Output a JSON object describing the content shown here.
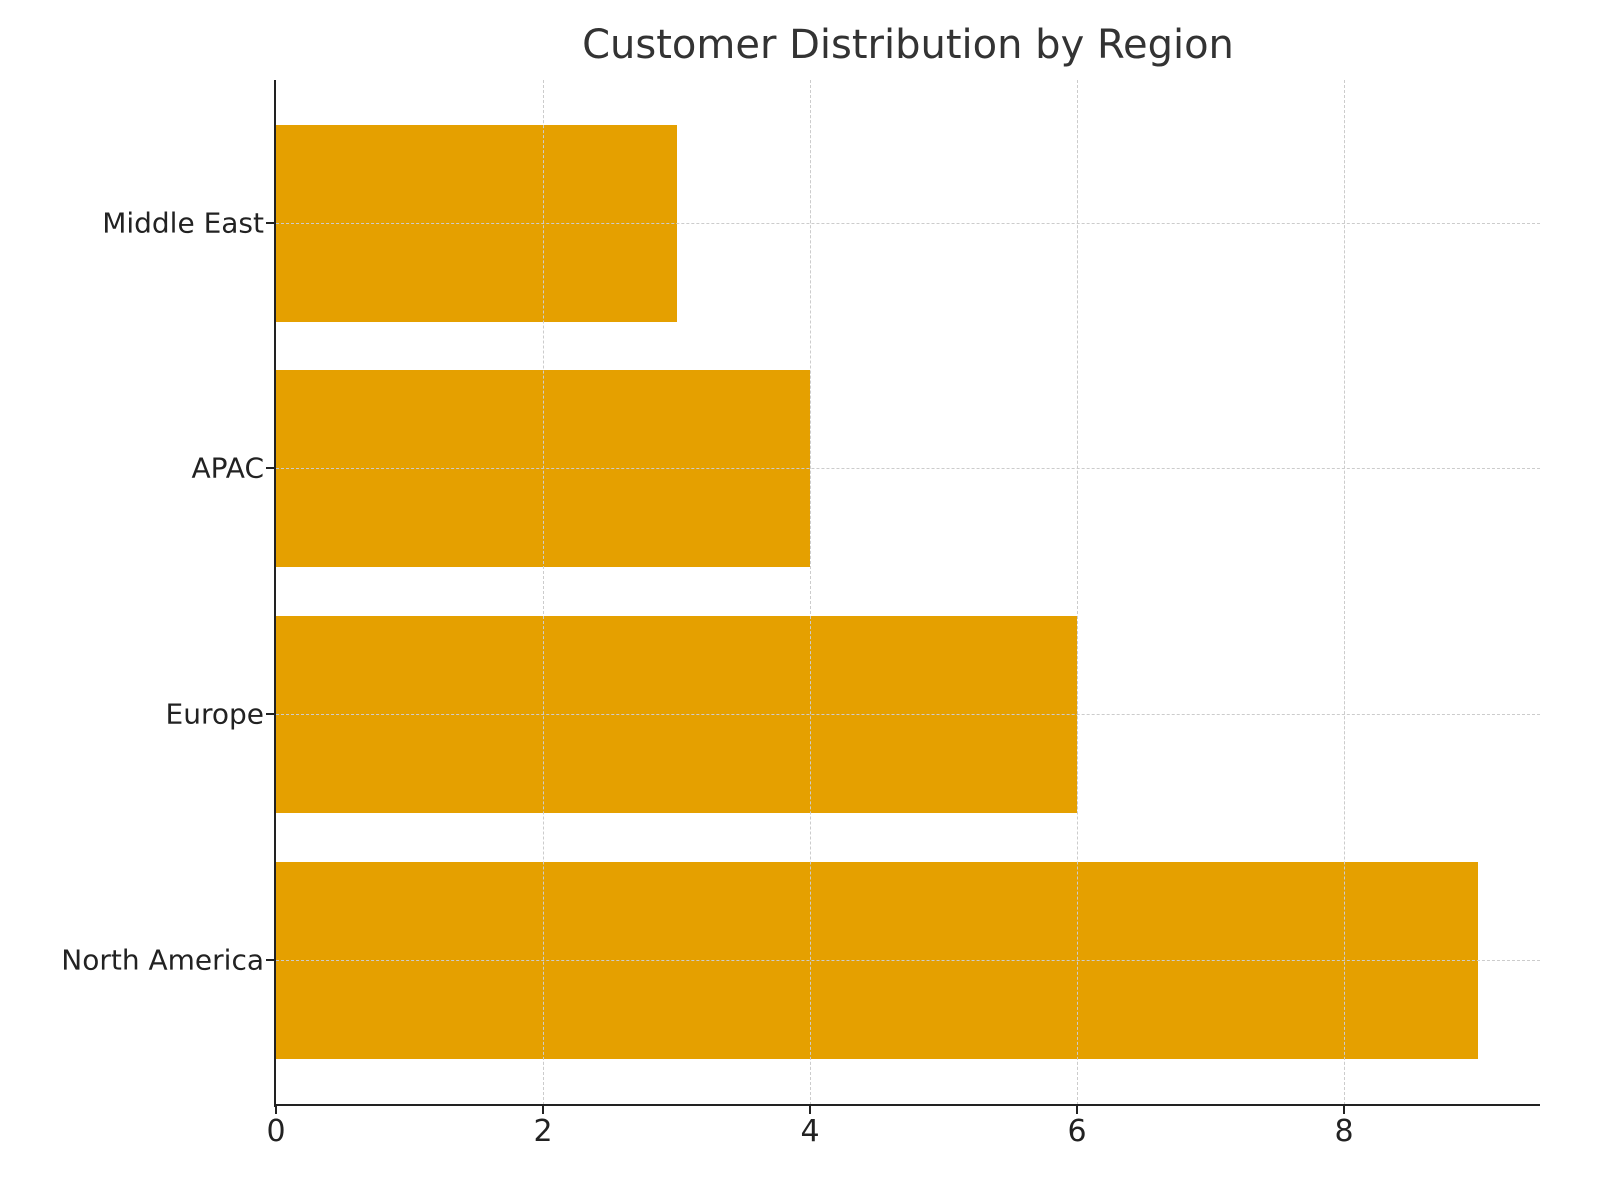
{
  "chart_data": {
    "type": "bar",
    "orientation": "horizontal",
    "title": "Customer Distribution by Region",
    "xlabel": "",
    "ylabel": "",
    "categories": [
      "North America",
      "Europe",
      "APAC",
      "Middle East"
    ],
    "values": [
      9,
      6,
      4,
      3
    ],
    "xlim": [
      0,
      9.45
    ],
    "xticks": [
      "0",
      "2",
      "4",
      "6",
      "8"
    ],
    "grid": true,
    "legend": null,
    "bar_color": "#E5A000"
  }
}
